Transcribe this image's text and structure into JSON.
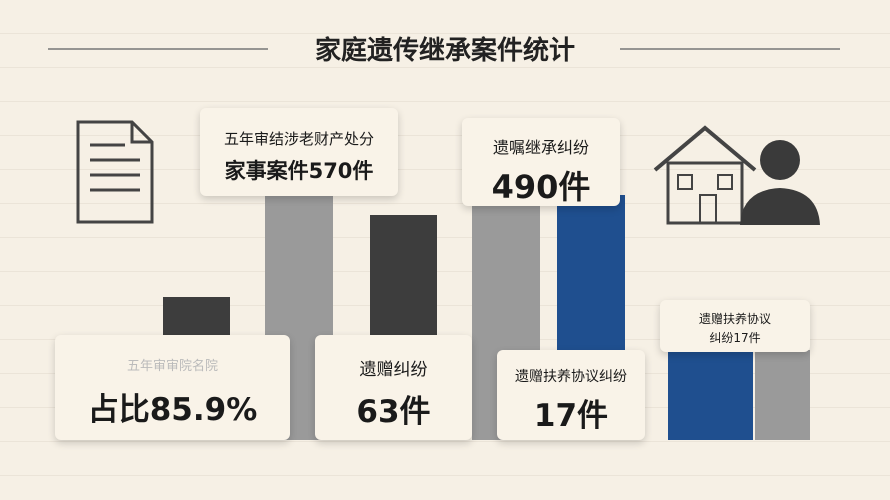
{
  "title": "家庭遗传继承案件统计",
  "cards": [
    {
      "caption": "五年审结涉老财产处分",
      "value": "家事案件570件"
    },
    {
      "caption": "遗嘱继承纠纷",
      "value": "490件"
    },
    {
      "caption": "遗赠扶养协议",
      "value": "纠纷17件"
    },
    {
      "caption": "五年审审院名院",
      "value": "占比85.9%"
    },
    {
      "caption": "遗赠纠纷",
      "value": "63件"
    },
    {
      "caption": "遗赠扶养协议纠纷",
      "value": "17件"
    }
  ]
}
